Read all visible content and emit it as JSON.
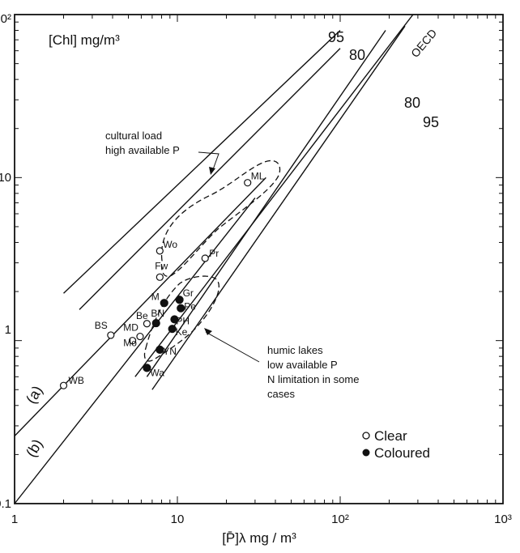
{
  "chart_data": {
    "type": "scatter",
    "x_scale": "log",
    "y_scale": "log",
    "xlim": [
      1,
      1000
    ],
    "ylim": [
      0.1,
      100
    ],
    "grid": false,
    "legend_placement": "bottom-right",
    "x_ticks": [
      "1",
      "10",
      "10²",
      "10³"
    ],
    "y_ticks": [
      "0.1",
      "1",
      "10",
      "10²"
    ],
    "xlabel": "[P̄]λ  mg / m³",
    "ylabel": "[Chl]  mg/m³",
    "legend": [
      {
        "label": "Clear",
        "marker": "open"
      },
      {
        "label": "Coloured",
        "marker": "filled"
      }
    ],
    "lines": [
      {
        "label": "(a)",
        "points": [
          [
            1,
            0.26
          ],
          [
            35,
            10
          ]
        ]
      },
      {
        "label": "(b)",
        "points": [
          [
            1,
            0.1
          ],
          [
            30,
            7.5
          ]
        ]
      },
      {
        "label": "OECD",
        "points": [
          [
            5.5,
            0.6
          ],
          [
            280,
            100
          ]
        ]
      },
      {
        "label": "95",
        "points": [
          [
            2,
            1.95
          ],
          [
            100,
            80
          ]
        ]
      },
      {
        "label": "80",
        "points": [
          [
            2.5,
            1.55
          ],
          [
            100,
            62
          ]
        ]
      },
      {
        "label": "80",
        "points": [
          [
            6.5,
            0.6
          ],
          [
            190,
            80
          ]
        ]
      },
      {
        "label": "95",
        "points": [
          [
            7,
            0.5
          ],
          [
            250,
            85
          ]
        ]
      }
    ],
    "points": [
      {
        "label": "WB",
        "x": 2,
        "y": 0.53,
        "type": "clear"
      },
      {
        "label": "BS",
        "x": 3.9,
        "y": 1.08,
        "type": "clear"
      },
      {
        "label": "MD",
        "x": 5.3,
        "y": 1.0,
        "type": "clear"
      },
      {
        "label": "Mo",
        "x": 5.9,
        "y": 1.06,
        "type": "clear"
      },
      {
        "label": "Be",
        "x": 6.5,
        "y": 1.27,
        "type": "clear"
      },
      {
        "label": "BN",
        "x": 7.4,
        "y": 1.28,
        "type": "filled"
      },
      {
        "label": "M",
        "x": 8.3,
        "y": 1.7,
        "type": "filled"
      },
      {
        "label": "Gr",
        "x": 10.3,
        "y": 1.78,
        "type": "filled"
      },
      {
        "label": "Pe",
        "x": 10.5,
        "y": 1.58,
        "type": "filled"
      },
      {
        "label": "PH",
        "x": 9.6,
        "y": 1.35,
        "type": "filled"
      },
      {
        "label": "Ke",
        "x": 9.3,
        "y": 1.18,
        "type": "filled"
      },
      {
        "label": "YN",
        "x": 7.8,
        "y": 0.88,
        "type": "filled"
      },
      {
        "label": "Wa",
        "x": 6.5,
        "y": 0.68,
        "type": "filled"
      },
      {
        "label": "Fw",
        "x": 7.8,
        "y": 2.45,
        "type": "clear"
      },
      {
        "label": "Wo",
        "x": 7.8,
        "y": 3.55,
        "type": "clear"
      },
      {
        "label": "Pr",
        "x": 14.8,
        "y": 3.2,
        "type": "clear"
      },
      {
        "label": "ML",
        "x": 27,
        "y": 9.3,
        "type": "clear"
      }
    ],
    "annotations": [
      {
        "lines": [
          "cultural load",
          "high available P"
        ]
      },
      {
        "lines": [
          "humic lakes",
          "low available P",
          "N limitation in some",
          "cases"
        ]
      }
    ]
  }
}
